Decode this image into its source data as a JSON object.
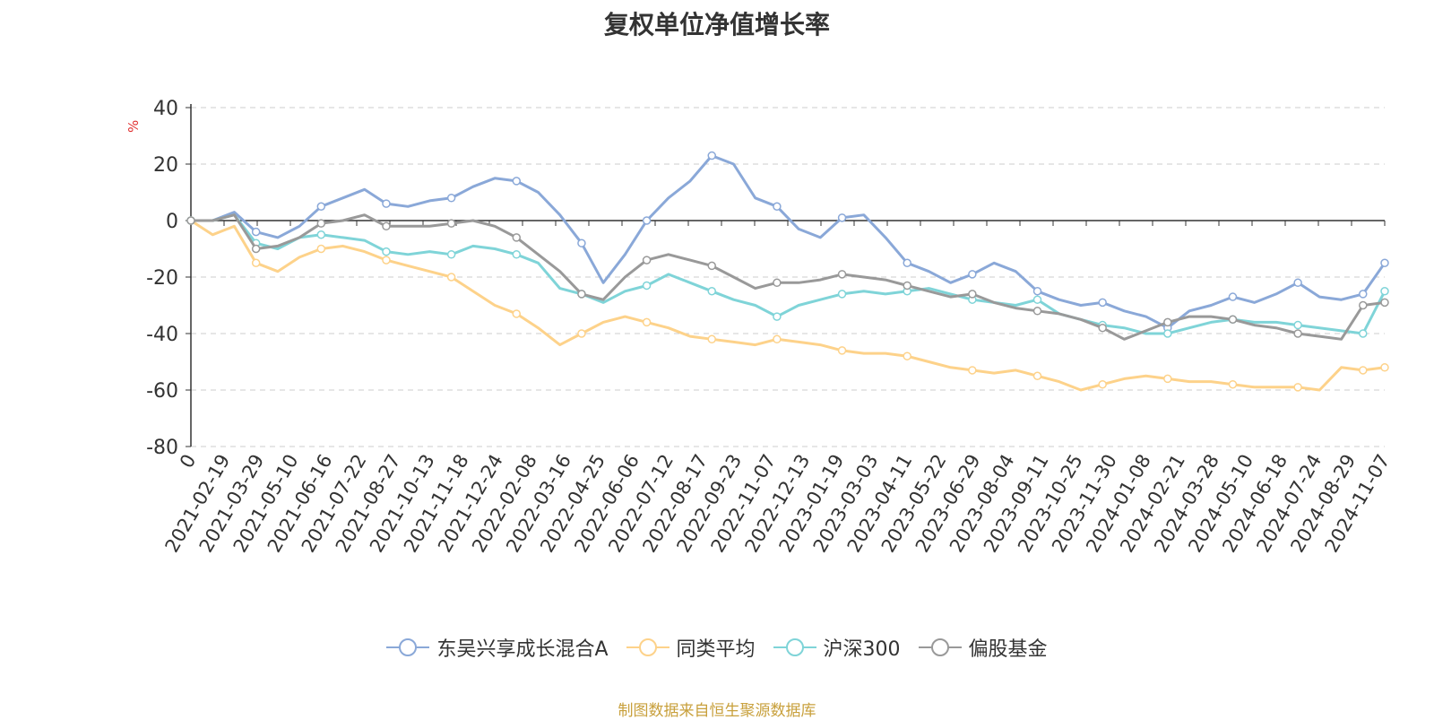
{
  "chart_data": {
    "type": "line",
    "title": "复权单位净值增长率",
    "ylabel": "%",
    "ylim": [
      -80,
      40
    ],
    "yticks": [
      40,
      20,
      0,
      -20,
      -40,
      -60,
      -80
    ],
    "grid": true,
    "legend_position": "bottom",
    "x_first_label": "0",
    "x_labels": [
      "2021-02-19",
      "2021-03-29",
      "2021-05-10",
      "2021-06-16",
      "2021-07-22",
      "2021-08-27",
      "2021-10-13",
      "2021-11-18",
      "2021-12-24",
      "2022-02-08",
      "2022-03-16",
      "2022-04-25",
      "2022-06-06",
      "2022-07-12",
      "2022-08-17",
      "2022-09-23",
      "2022-11-07",
      "2022-12-13",
      "2023-01-19",
      "2023-03-03",
      "2023-04-11",
      "2023-05-22",
      "2023-06-29",
      "2023-08-04",
      "2023-09-11",
      "2023-10-25",
      "2023-11-30",
      "2024-01-08",
      "2024-02-21",
      "2024-03-28",
      "2024-05-10",
      "2024-06-18",
      "2024-07-24",
      "2024-08-29",
      "2024-11-07"
    ],
    "series": [
      {
        "name": "东吴兴享成长混合A",
        "color": "#8aa8d8",
        "values": [
          0,
          0,
          3,
          -4,
          -6,
          -2,
          5,
          8,
          11,
          6,
          5,
          7,
          8,
          12,
          15,
          14,
          10,
          2,
          -8,
          -22,
          -12,
          0,
          8,
          14,
          23,
          20,
          8,
          5,
          -3,
          -6,
          1,
          2,
          -6,
          -15,
          -18,
          -22,
          -19,
          -15,
          -18,
          -25,
          -28,
          -30,
          -29,
          -32,
          -34,
          -38,
          -32,
          -30,
          -27,
          -29,
          -26,
          -22,
          -27,
          -28,
          -26,
          -15
        ]
      },
      {
        "name": "同类平均",
        "color": "#fdd28a",
        "values": [
          0,
          -5,
          -2,
          -15,
          -18,
          -13,
          -10,
          -9,
          -11,
          -14,
          -16,
          -18,
          -20,
          -25,
          -30,
          -33,
          -38,
          -44,
          -40,
          -36,
          -34,
          -36,
          -38,
          -41,
          -42,
          -43,
          -44,
          -42,
          -43,
          -44,
          -46,
          -47,
          -47,
          -48,
          -50,
          -52,
          -53,
          -54,
          -53,
          -55,
          -57,
          -60,
          -58,
          -56,
          -55,
          -56,
          -57,
          -57,
          -58,
          -59,
          -59,
          -59,
          -60,
          -52,
          -53,
          -52
        ]
      },
      {
        "name": "沪深300",
        "color": "#7fd4d8",
        "values": [
          0,
          0,
          2,
          -8,
          -10,
          -6,
          -5,
          -6,
          -7,
          -11,
          -12,
          -11,
          -12,
          -9,
          -10,
          -12,
          -15,
          -24,
          -26,
          -29,
          -25,
          -23,
          -19,
          -22,
          -25,
          -28,
          -30,
          -34,
          -30,
          -28,
          -26,
          -25,
          -26,
          -25,
          -24,
          -26,
          -28,
          -29,
          -30,
          -28,
          -33,
          -35,
          -37,
          -38,
          -40,
          -40,
          -38,
          -36,
          -35,
          -36,
          -36,
          -37,
          -38,
          -39,
          -40,
          -25
        ]
      },
      {
        "name": "偏股基金",
        "color": "#999999",
        "values": [
          0,
          0,
          2,
          -10,
          -9,
          -6,
          -1,
          0,
          2,
          -2,
          -2,
          -2,
          -1,
          0,
          -2,
          -6,
          -12,
          -18,
          -26,
          -28,
          -20,
          -14,
          -12,
          -14,
          -16,
          -20,
          -24,
          -22,
          -22,
          -21,
          -19,
          -20,
          -21,
          -23,
          -25,
          -27,
          -26,
          -29,
          -31,
          -32,
          -33,
          -35,
          -38,
          -42,
          -39,
          -36,
          -34,
          -34,
          -35,
          -37,
          -38,
          -40,
          -41,
          -42,
          -30,
          -29
        ]
      }
    ]
  },
  "source_text": "制图数据来自恒生聚源数据库"
}
